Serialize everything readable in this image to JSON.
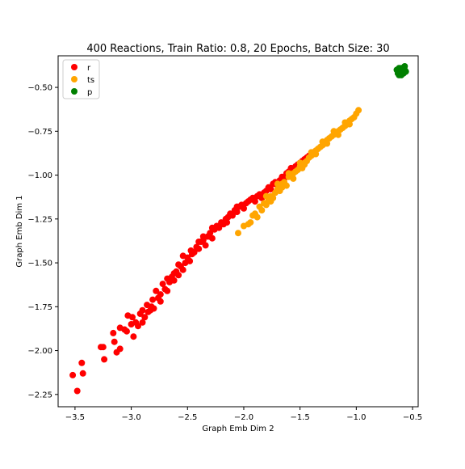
{
  "chart_data": {
    "type": "scatter",
    "title": "400 Reactions, Train Ratio: 0.8, 20 Epochs, Batch Size: 30",
    "xlabel": "Graph Emb Dim 2",
    "ylabel": "Graph Emb Dim 1",
    "xlim": [
      -3.65,
      -0.45
    ],
    "ylim": [
      -2.32,
      -0.32
    ],
    "xticks": [
      -3.5,
      -3.0,
      -2.5,
      -2.0,
      -1.5,
      -1.0,
      -0.5
    ],
    "xtick_labels": [
      "−3.5",
      "−3.0",
      "−2.5",
      "−2.0",
      "−1.5",
      "−1.0",
      "−0.5"
    ],
    "yticks": [
      -2.25,
      -2.0,
      -1.75,
      -1.5,
      -1.25,
      -1.0,
      -0.75,
      -0.5
    ],
    "ytick_labels": [
      "−2.25",
      "−2.00",
      "−1.75",
      "−1.50",
      "−1.25",
      "−1.00",
      "−0.75",
      "−0.50"
    ],
    "grid": false,
    "legend_position": "upper-left",
    "series": [
      {
        "name": "r",
        "color": "#ff0000",
        "points": [
          [
            -3.52,
            -2.14
          ],
          [
            -3.48,
            -2.23
          ],
          [
            -3.44,
            -2.07
          ],
          [
            -3.43,
            -2.13
          ],
          [
            -3.27,
            -1.98
          ],
          [
            -3.25,
            -1.98
          ],
          [
            -3.24,
            -2.05
          ],
          [
            -3.16,
            -1.9
          ],
          [
            -3.15,
            -1.95
          ],
          [
            -3.13,
            -2.01
          ],
          [
            -3.1,
            -1.87
          ],
          [
            -3.1,
            -1.99
          ],
          [
            -3.06,
            -1.88
          ],
          [
            -3.04,
            -1.89
          ],
          [
            -3.03,
            -1.8
          ],
          [
            -2.99,
            -1.81
          ],
          [
            -2.98,
            -1.92
          ],
          [
            -2.96,
            -1.84
          ],
          [
            -2.94,
            -1.86
          ],
          [
            -2.92,
            -1.79
          ],
          [
            -2.9,
            -1.84
          ],
          [
            -2.88,
            -1.81
          ],
          [
            -2.86,
            -1.74
          ],
          [
            -2.85,
            -1.78
          ],
          [
            -2.83,
            -1.77
          ],
          [
            -2.81,
            -1.71
          ],
          [
            -2.8,
            -1.76
          ],
          [
            -2.78,
            -1.66
          ],
          [
            -2.76,
            -1.7
          ],
          [
            -2.74,
            -1.68
          ],
          [
            -2.72,
            -1.62
          ],
          [
            -2.7,
            -1.65
          ],
          [
            -2.68,
            -1.66
          ],
          [
            -2.66,
            -1.61
          ],
          [
            -2.64,
            -1.58
          ],
          [
            -2.62,
            -1.6
          ],
          [
            -2.6,
            -1.55
          ],
          [
            -2.58,
            -1.57
          ],
          [
            -2.56,
            -1.52
          ],
          [
            -2.54,
            -1.54
          ],
          [
            -2.52,
            -1.5
          ],
          [
            -2.5,
            -1.47
          ],
          [
            -2.48,
            -1.49
          ],
          [
            -2.46,
            -1.45
          ],
          [
            -2.44,
            -1.44
          ],
          [
            -2.42,
            -1.41
          ],
          [
            -2.4,
            -1.42
          ],
          [
            -2.38,
            -1.38
          ],
          [
            -2.36,
            -1.37
          ],
          [
            -2.34,
            -1.4
          ],
          [
            -2.32,
            -1.35
          ],
          [
            -2.3,
            -1.33
          ],
          [
            -2.28,
            -1.36
          ],
          [
            -2.26,
            -1.31
          ],
          [
            -2.24,
            -1.29
          ],
          [
            -2.22,
            -1.3
          ],
          [
            -2.2,
            -1.27
          ],
          [
            -2.18,
            -1.28
          ],
          [
            -2.16,
            -1.25
          ],
          [
            -2.14,
            -1.24
          ],
          [
            -2.12,
            -1.22
          ],
          [
            -2.1,
            -1.23
          ],
          [
            -2.08,
            -1.2
          ],
          [
            -2.06,
            -1.21
          ],
          [
            -2.04,
            -1.18
          ],
          [
            -2.02,
            -1.17
          ],
          [
            -2.0,
            -1.19
          ],
          [
            -1.98,
            -1.16
          ],
          [
            -1.96,
            -1.15
          ],
          [
            -1.94,
            -1.14
          ],
          [
            -1.92,
            -1.13
          ],
          [
            -1.9,
            -1.15
          ],
          [
            -1.88,
            -1.12
          ],
          [
            -1.86,
            -1.11
          ],
          [
            -1.84,
            -1.13
          ],
          [
            -1.82,
            -1.1
          ],
          [
            -1.8,
            -1.09
          ],
          [
            -1.78,
            -1.07
          ],
          [
            -1.76,
            -1.08
          ],
          [
            -1.74,
            -1.05
          ],
          [
            -1.72,
            -1.04
          ],
          [
            -1.7,
            -1.06
          ],
          [
            -1.68,
            -1.03
          ],
          [
            -1.66,
            -1.01
          ],
          [
            -1.64,
            -1.02
          ],
          [
            -1.62,
            -0.99
          ],
          [
            -1.6,
            -0.98
          ],
          [
            -1.58,
            -0.96
          ],
          [
            -1.56,
            -0.97
          ],
          [
            -1.54,
            -0.95
          ],
          [
            -1.52,
            -0.94
          ],
          [
            -1.5,
            -0.93
          ],
          [
            -1.48,
            -0.92
          ],
          [
            -1.46,
            -0.91
          ],
          [
            -1.44,
            -0.9
          ],
          [
            -1.42,
            -0.89
          ],
          [
            -1.4,
            -0.88
          ],
          [
            -1.38,
            -0.87
          ],
          [
            -2.58,
            -1.51
          ],
          [
            -2.68,
            -1.59
          ],
          [
            -2.47,
            -1.43
          ],
          [
            -2.28,
            -1.3
          ],
          [
            -2.74,
            -1.72
          ],
          [
            -2.62,
            -1.56
          ],
          [
            -2.9,
            -1.77
          ],
          [
            -2.36,
            -1.35
          ],
          [
            -2.15,
            -1.27
          ],
          [
            -2.54,
            -1.46
          ],
          [
            -2.82,
            -1.75
          ],
          [
            -2.4,
            -1.38
          ],
          [
            -2.06,
            -1.18
          ],
          [
            -3.0,
            -1.85
          ]
        ]
      },
      {
        "name": "ts",
        "color": "#ffa500",
        "points": [
          [
            -2.05,
            -1.33
          ],
          [
            -2.0,
            -1.29
          ],
          [
            -1.96,
            -1.28
          ],
          [
            -1.94,
            -1.27
          ],
          [
            -1.92,
            -1.23
          ],
          [
            -1.9,
            -1.22
          ],
          [
            -1.88,
            -1.24
          ],
          [
            -1.86,
            -1.18
          ],
          [
            -1.84,
            -1.2
          ],
          [
            -1.82,
            -1.16
          ],
          [
            -1.8,
            -1.17
          ],
          [
            -1.78,
            -1.14
          ],
          [
            -1.76,
            -1.12
          ],
          [
            -1.74,
            -1.13
          ],
          [
            -1.72,
            -1.1
          ],
          [
            -1.7,
            -1.08
          ],
          [
            -1.68,
            -1.09
          ],
          [
            -1.66,
            -1.05
          ],
          [
            -1.64,
            -1.04
          ],
          [
            -1.62,
            -1.06
          ],
          [
            -1.6,
            -1.01
          ],
          [
            -1.58,
            -1.0
          ],
          [
            -1.56,
            -1.02
          ],
          [
            -1.54,
            -0.98
          ],
          [
            -1.52,
            -0.97
          ],
          [
            -1.5,
            -0.95
          ],
          [
            -1.48,
            -0.96
          ],
          [
            -1.46,
            -0.93
          ],
          [
            -1.44,
            -0.92
          ],
          [
            -1.42,
            -0.9
          ],
          [
            -1.4,
            -0.89
          ],
          [
            -1.38,
            -0.88
          ],
          [
            -1.36,
            -0.86
          ],
          [
            -1.34,
            -0.85
          ],
          [
            -1.32,
            -0.84
          ],
          [
            -1.3,
            -0.83
          ],
          [
            -1.28,
            -0.82
          ],
          [
            -1.26,
            -0.8
          ],
          [
            -1.24,
            -0.79
          ],
          [
            -1.22,
            -0.78
          ],
          [
            -1.2,
            -0.77
          ],
          [
            -1.18,
            -0.76
          ],
          [
            -1.16,
            -0.75
          ],
          [
            -1.14,
            -0.74
          ],
          [
            -1.12,
            -0.73
          ],
          [
            -1.1,
            -0.72
          ],
          [
            -1.08,
            -0.71
          ],
          [
            -1.06,
            -0.69
          ],
          [
            -1.04,
            -0.68
          ],
          [
            -1.02,
            -0.67
          ],
          [
            -1.0,
            -0.65
          ],
          [
            -0.98,
            -0.63
          ],
          [
            -1.8,
            -1.12
          ],
          [
            -1.7,
            -1.05
          ],
          [
            -1.6,
            -0.99
          ],
          [
            -1.5,
            -0.93
          ],
          [
            -1.4,
            -0.87
          ],
          [
            -1.3,
            -0.81
          ],
          [
            -1.2,
            -0.75
          ],
          [
            -1.1,
            -0.7
          ],
          [
            -1.76,
            -1.15
          ],
          [
            -1.66,
            -1.07
          ],
          [
            -1.56,
            -0.99
          ],
          [
            -1.46,
            -0.94
          ],
          [
            -1.36,
            -0.88
          ],
          [
            -1.26,
            -0.82
          ],
          [
            -1.16,
            -0.77
          ],
          [
            -1.06,
            -0.71
          ]
        ]
      },
      {
        "name": "p",
        "color": "#008000",
        "points": [
          [
            -0.64,
            -0.4
          ],
          [
            -0.63,
            -0.42
          ],
          [
            -0.62,
            -0.39
          ],
          [
            -0.61,
            -0.41
          ],
          [
            -0.6,
            -0.43
          ],
          [
            -0.59,
            -0.4
          ],
          [
            -0.58,
            -0.42
          ],
          [
            -0.57,
            -0.38
          ],
          [
            -0.56,
            -0.41
          ],
          [
            -0.62,
            -0.43
          ],
          [
            -0.6,
            -0.39
          ],
          [
            -0.58,
            -0.41
          ],
          [
            -0.63,
            -0.41
          ],
          [
            -0.61,
            -0.42
          ],
          [
            -0.59,
            -0.42
          ],
          [
            -0.57,
            -0.4
          ]
        ]
      }
    ]
  }
}
